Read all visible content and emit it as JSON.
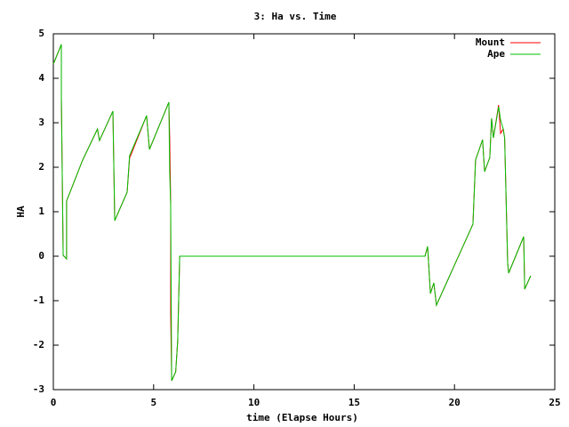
{
  "chart_data": {
    "type": "line",
    "title": "3: Ha vs. Time",
    "x_label": "time (Elapse Hours)",
    "y_label": "HA",
    "xlim": [
      0,
      25
    ],
    "ylim": [
      -3,
      5
    ],
    "xticks": [
      0,
      5,
      10,
      15,
      20,
      25
    ],
    "yticks": [
      -3,
      -2,
      -1,
      0,
      1,
      2,
      3,
      4,
      5
    ],
    "grid": false,
    "legend": "top-right",
    "series": [
      {
        "name": "Mount",
        "color": "#ff0000",
        "x": [
          0,
          0.4,
          0.4,
          0.49,
          0.66,
          0.66,
          1.46,
          2.2,
          2.3,
          2.97,
          3.06,
          3.68,
          3.8,
          4.65,
          4.79,
          5.76,
          5.8,
          5.85,
          5.85,
          5.9,
          6.1,
          6.2,
          6.3,
          18.53,
          18.66,
          18.8,
          18.97,
          19.1,
          20.92,
          21.05,
          21.4,
          21.5,
          21.76,
          21.85,
          21.94,
          22.2,
          22.3,
          22.43,
          22.5,
          22.65,
          22.7,
          23.45,
          23.5,
          23.8
        ],
        "values": [
          4.32,
          4.76,
          3.56,
          0.02,
          -0.06,
          1.24,
          2.16,
          2.86,
          2.6,
          3.26,
          0.8,
          1.44,
          2.2,
          3.16,
          2.4,
          3.46,
          2.7,
          1.2,
          -1.3,
          -2.8,
          -2.6,
          -1.9,
          0,
          0,
          0.22,
          -0.84,
          -0.6,
          -1.1,
          0.72,
          2.16,
          2.62,
          1.9,
          2.22,
          3.1,
          2.66,
          3.4,
          2.76,
          2.86,
          2.66,
          -0.14,
          -0.38,
          0.44,
          -0.74,
          -0.44
        ]
      },
      {
        "name": "Ape",
        "color": "#00c000",
        "x": [
          0,
          0.4,
          0.4,
          0.49,
          0.66,
          0.66,
          1.46,
          2.2,
          2.3,
          2.97,
          3.06,
          3.68,
          3.8,
          4.65,
          4.79,
          5.76,
          5.8,
          5.85,
          5.9,
          6.1,
          6.2,
          6.3,
          18.53,
          18.66,
          18.8,
          18.97,
          19.1,
          20.92,
          21.05,
          21.4,
          21.5,
          21.76,
          21.85,
          21.94,
          22.2,
          22.3,
          22.43,
          22.5,
          22.65,
          22.7,
          23.45,
          23.5,
          23.8
        ],
        "values": [
          4.32,
          4.76,
          3.56,
          0.02,
          -0.06,
          1.24,
          2.16,
          2.86,
          2.6,
          3.26,
          0.8,
          1.44,
          2.26,
          3.16,
          2.4,
          3.46,
          1.9,
          1.16,
          -2.8,
          -2.6,
          -1.9,
          0,
          0,
          0.22,
          -0.84,
          -0.6,
          -1.1,
          0.72,
          2.16,
          2.62,
          1.9,
          2.22,
          3.1,
          2.66,
          3.36,
          3.06,
          2.86,
          2.66,
          -0.14,
          -0.38,
          0.44,
          -0.74,
          -0.44
        ]
      }
    ]
  }
}
